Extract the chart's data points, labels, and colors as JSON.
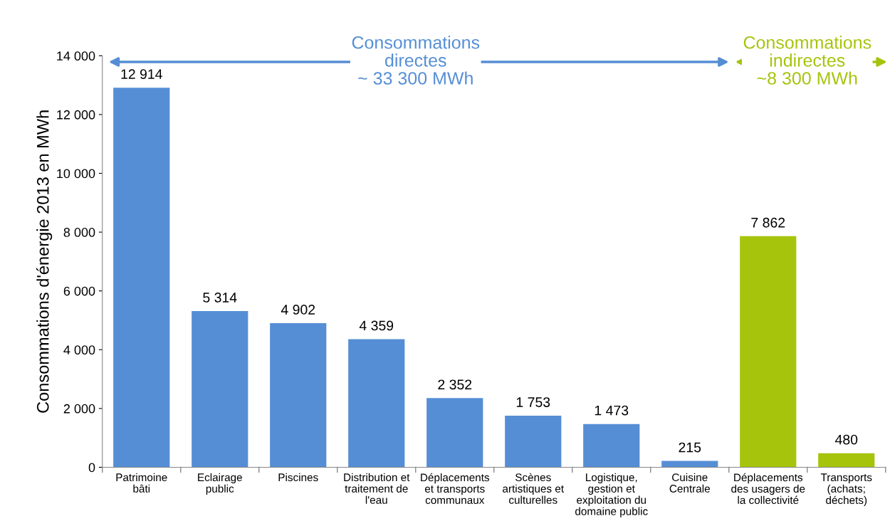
{
  "chart_data": {
    "type": "bar",
    "categories": [
      "Patrimoine\nbâti",
      "Eclairage\npublic",
      "Piscines",
      "Distribution et\ntraitement de\nl'eau",
      "Déplacements\net transports\ncommunaux",
      "Scènes\nartistiques et\nculturelles",
      "Logistique,\ngestion et\nexploitation du\ndomaine public",
      "Cuisine\nCentrale",
      "Déplacements\ndes usagers de\nla collectivité",
      "Transports\n(achats;\ndéchets)"
    ],
    "values": [
      12914,
      5314,
      4902,
      4359,
      2352,
      1753,
      1473,
      215,
      7862,
      480
    ],
    "value_labels": [
      "12 914",
      "5 314",
      "4 902",
      "4 359",
      "2 352",
      "1 753",
      "1 473",
      "215",
      "7 862",
      "480"
    ],
    "colors": [
      "#558ed5",
      "#558ed5",
      "#558ed5",
      "#558ed5",
      "#558ed5",
      "#558ed5",
      "#558ed5",
      "#558ed5",
      "#a6c40c",
      "#a6c40c"
    ],
    "ylabel": "Consommations d'énergie 2013 en MWh",
    "ylim": [
      0,
      14000
    ],
    "yticks": [
      0,
      {
        "value": 2000,
        "label": "2 000"
      },
      {
        "value": 4000,
        "label": "4 000"
      },
      {
        "value": 6000,
        "label": "6 000"
      },
      {
        "value": 8000,
        "label": "8 000"
      },
      {
        "value": 10000,
        "label": "10 000"
      },
      {
        "value": 12000,
        "label": "12 000"
      },
      {
        "value": 14000,
        "label": "14 000"
      }
    ],
    "annotations": [
      "Consommations\ndirectes\n~ 33 300 MWh",
      "Consommations\nindirectes\n~8 300 MWh"
    ],
    "grid": false,
    "legend": false
  }
}
